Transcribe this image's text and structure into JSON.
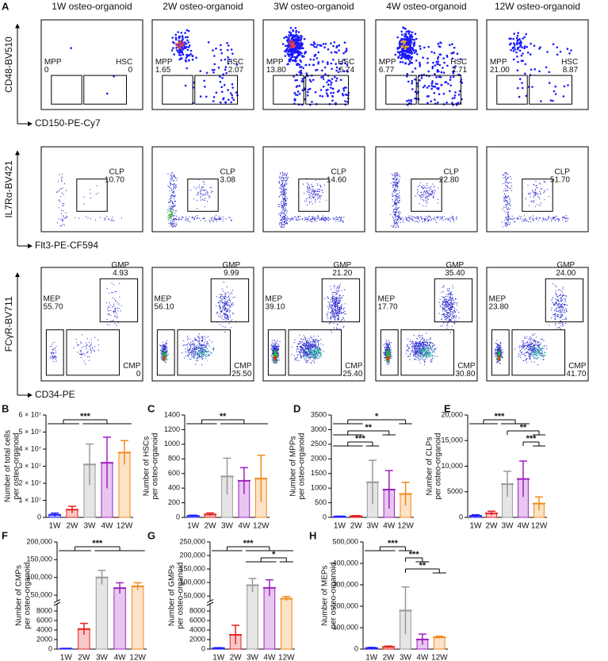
{
  "panel_a": {
    "letter": "A",
    "columns": [
      "1W osteo-organoid",
      "2W osteo-organoid",
      "3W osteo-organoid",
      "4W osteo-organoid",
      "12W osteo-organoid"
    ],
    "rows": [
      {
        "kind": "hsc",
        "y_label": "CD48-BV510",
        "x_label": "CD150-PE-Cy7",
        "gates": [
          {
            "name": "MPP",
            "values": [
              "0",
              "1.65",
              "13.80",
              "6.77",
              "21.00"
            ]
          },
          {
            "name": "HSC",
            "values": [
              "0",
              "2.07",
              "6.74",
              "2.71",
              "8.87"
            ]
          }
        ]
      },
      {
        "kind": "clp",
        "y_label": "IL7Rα-BV421",
        "x_label": "Flt3-PE-CF594",
        "gates": [
          {
            "name": "CLP",
            "values": [
              "10.70",
              "3.08",
              "14.60",
              "22.80",
              "51.70"
            ]
          }
        ]
      },
      {
        "kind": "myeloid",
        "y_label": "FCγR-BV711",
        "x_label": "CD34-PE",
        "gates": [
          {
            "name": "GMP",
            "values": [
              "4.93",
              "9.99",
              "21.20",
              "35.40",
              "24.00"
            ]
          },
          {
            "name": "MEP",
            "values": [
              "55.70",
              "56.10",
              "39.10",
              "17.70",
              "23.80"
            ]
          },
          {
            "name": "CMP",
            "values": [
              "0",
              "25.50",
              "25.40",
              "30.80",
              "41.70"
            ]
          }
        ]
      }
    ]
  },
  "chart_data": [
    {
      "type": "bar",
      "letter": "B",
      "y_label": [
        "Number of total cells",
        "per osteo-organoid"
      ],
      "categories": [
        "1W",
        "2W",
        "3W",
        "4W",
        "12W"
      ],
      "colors": [
        "#1f1fff",
        "#e52222",
        "#999999",
        "#a020c0",
        "#f28a1c"
      ],
      "values": [
        1500000,
        4500000,
        31000000,
        32000000,
        38000000
      ],
      "errors": [
        1000000,
        2000000,
        12000000,
        15000000,
        7000000
      ],
      "ylim": [
        0,
        60000000
      ],
      "yticks": [
        0,
        {
          "value": 10000000,
          "label": "1 × 10⁷"
        },
        {
          "value": 20000000,
          "label": "2 × 10⁷"
        },
        {
          "value": 30000000,
          "label": "3 × 10⁷"
        },
        {
          "value": 40000000,
          "label": "4 × 10⁷"
        },
        {
          "value": 50000000,
          "label": "5 × 10⁷"
        },
        {
          "value": 60000000,
          "label": "6 × 10⁷"
        }
      ],
      "significance": [
        {
          "label": "***",
          "a": [
            "1W",
            "2W"
          ],
          "b": [
            "3W",
            "4W",
            "12W"
          ]
        }
      ]
    },
    {
      "type": "bar",
      "letter": "C",
      "y_label": [
        "Number of HSCs",
        "per osteo-organoid"
      ],
      "categories": [
        "1W",
        "2W",
        "3W",
        "4W",
        "12W"
      ],
      "colors": [
        "#1f1fff",
        "#e52222",
        "#999999",
        "#a020c0",
        "#f28a1c"
      ],
      "values": [
        20,
        40,
        560,
        500,
        530
      ],
      "errors": [
        10,
        20,
        250,
        180,
        320
      ],
      "ylim": [
        0,
        1400
      ],
      "yticks": [
        0,
        200,
        400,
        600,
        800,
        1000,
        1200,
        1400
      ],
      "significance": [
        {
          "label": "**",
          "a": [
            "1W",
            "2W"
          ],
          "b": [
            "3W",
            "4W",
            "12W"
          ]
        }
      ]
    },
    {
      "type": "bar",
      "letter": "D",
      "y_label": [
        "Number of MPPs",
        "per osteo-organoid"
      ],
      "categories": [
        "1W",
        "2W",
        "3W",
        "4W",
        "12W"
      ],
      "colors": [
        "#1f1fff",
        "#e52222",
        "#999999",
        "#a020c0",
        "#f28a1c"
      ],
      "values": [
        30,
        40,
        1200,
        950,
        800
      ],
      "errors": [
        10,
        20,
        750,
        650,
        400
      ],
      "ylim": [
        0,
        3500
      ],
      "yticks": [
        0,
        500,
        1000,
        1500,
        2000,
        2500,
        3000,
        3500
      ],
      "significance": [
        {
          "label": "*",
          "a": [
            "1W",
            "2W"
          ],
          "b": [
            "12W"
          ]
        },
        {
          "label": "**",
          "a": [
            "1W",
            "2W"
          ],
          "b": [
            "4W"
          ]
        },
        {
          "label": "***",
          "a": [
            "1W",
            "2W"
          ],
          "b": [
            "3W"
          ]
        }
      ]
    },
    {
      "type": "bar",
      "letter": "E",
      "y_label": [
        "Number of CLPs",
        "per osteo-organoid"
      ],
      "categories": [
        "1W",
        "2W",
        "3W",
        "4W",
        "12W"
      ],
      "colors": [
        "#1f1fff",
        "#e52222",
        "#999999",
        "#a020c0",
        "#f28a1c"
      ],
      "values": [
        300,
        800,
        6500,
        7500,
        2700
      ],
      "errors": [
        200,
        400,
        2500,
        3500,
        1300
      ],
      "ylim": [
        0,
        20000
      ],
      "yticks": [
        0,
        5000,
        {
          "value": 10000,
          "label": "10,000"
        },
        {
          "value": 15000,
          "label": "15,000"
        },
        {
          "value": 20000,
          "label": "20,000"
        }
      ],
      "significance": [
        {
          "label": "***",
          "a": [
            "1W",
            "2W"
          ],
          "b": [
            "3W",
            "4W"
          ]
        },
        {
          "label": "**",
          "a": [
            "3W"
          ],
          "b": [
            "12W"
          ]
        },
        {
          "label": "***",
          "a": [
            "4W"
          ],
          "b": [
            "12W"
          ]
        }
      ]
    },
    {
      "type": "bar",
      "letter": "F",
      "y_label": [
        "Number of CMPs",
        "per osteo-organoid"
      ],
      "categories": [
        "1W",
        "2W",
        "3W",
        "4W",
        "12W"
      ],
      "colors": [
        "#1f1fff",
        "#e52222",
        "#999999",
        "#a020c0",
        "#f28a1c"
      ],
      "values": [
        100,
        4200,
        100000,
        70000,
        75000
      ],
      "errors": [
        50,
        1200,
        20000,
        15000,
        10000
      ],
      "ylim": [
        0,
        200000
      ],
      "ybreak": [
        9000,
        40000
      ],
      "yticks": [
        0,
        2000,
        4000,
        6000,
        8000,
        {
          "value": 50000,
          "label": "50,000"
        },
        {
          "value": 100000,
          "label": "100,000"
        },
        {
          "value": 150000,
          "label": "150,000"
        },
        {
          "value": 200000,
          "label": "200,000"
        }
      ],
      "significance": [
        {
          "label": "***",
          "a": [
            "1W",
            "2W"
          ],
          "b": [
            "3W",
            "4W",
            "12W"
          ]
        }
      ]
    },
    {
      "type": "bar",
      "letter": "G",
      "y_label": [
        "Number of GMPs",
        "per osteo-organoid"
      ],
      "categories": [
        "1W",
        "2W",
        "3W",
        "4W",
        "12W"
      ],
      "colors": [
        "#1f1fff",
        "#e52222",
        "#999999",
        "#a020c0",
        "#f28a1c"
      ],
      "values": [
        200,
        3000,
        90000,
        80000,
        40000
      ],
      "errors": [
        100,
        2000,
        25000,
        30000,
        8000
      ],
      "ylim": [
        0,
        250000
      ],
      "ybreak": [
        9000,
        40000
      ],
      "yticks": [
        0,
        2000,
        4000,
        6000,
        8000,
        {
          "value": 50000,
          "label": "50,000"
        },
        {
          "value": 100000,
          "label": "100,000"
        },
        {
          "value": 150000,
          "label": "150,000"
        },
        {
          "value": 200000,
          "label": "200,000"
        },
        {
          "value": 250000,
          "label": "250,000"
        }
      ],
      "significance": [
        {
          "label": "***",
          "a": [
            "1W",
            "2W"
          ],
          "b": [
            "3W",
            "4W",
            "12W"
          ]
        },
        {
          "label": "*",
          "a": [
            "3W",
            "4W"
          ],
          "b": [
            "12W"
          ]
        }
      ]
    },
    {
      "type": "bar",
      "letter": "H",
      "y_label": [
        "Number of MEPs",
        "per osteo-organoid"
      ],
      "categories": [
        "1W",
        "2W",
        "3W",
        "4W",
        "12W"
      ],
      "colors": [
        "#1f1fff",
        "#e52222",
        "#999999",
        "#a020c0",
        "#f28a1c"
      ],
      "values": [
        5000,
        10000,
        180000,
        45000,
        55000
      ],
      "errors": [
        3000,
        4000,
        110000,
        25000,
        5000
      ],
      "ylim": [
        0,
        500000
      ],
      "yticks": [
        0,
        {
          "value": 100000,
          "label": "100,000"
        },
        {
          "value": 200000,
          "label": "200,000"
        },
        {
          "value": 300000,
          "label": "300,000"
        },
        {
          "value": 400000,
          "label": "400,000"
        },
        {
          "value": 500000,
          "label": "500,000"
        }
      ],
      "significance": [
        {
          "label": "***",
          "a": [
            "1W",
            "2W"
          ],
          "b": [
            "3W"
          ]
        },
        {
          "label": "***",
          "a": [
            "3W"
          ],
          "b": [
            "4W"
          ]
        },
        {
          "label": "**",
          "a": [
            "3W"
          ],
          "b": [
            "12W"
          ]
        }
      ]
    }
  ]
}
